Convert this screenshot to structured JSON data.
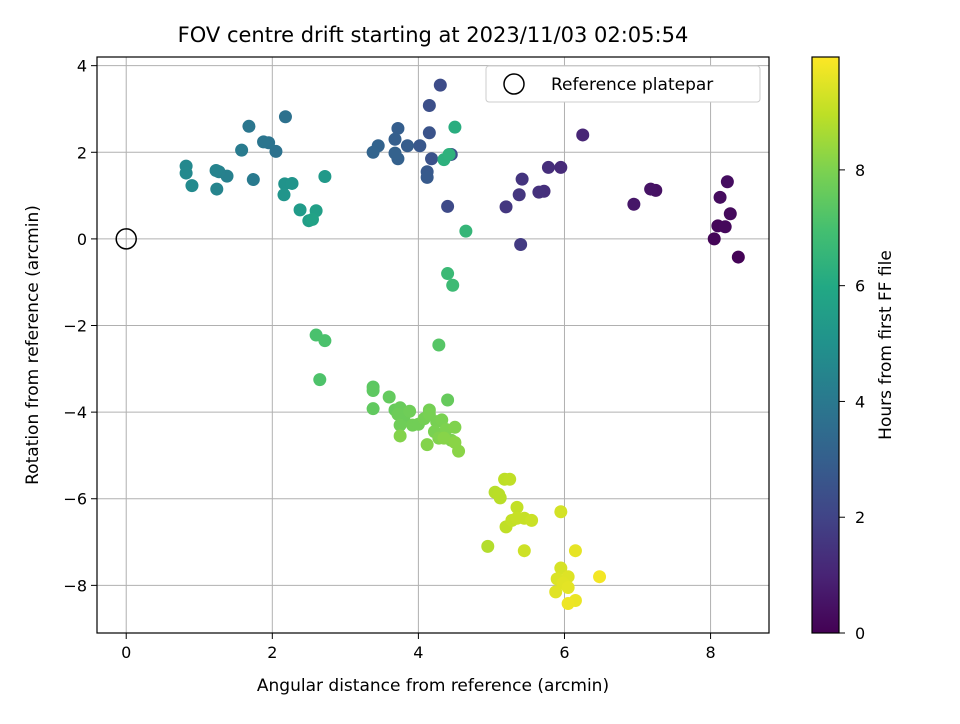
{
  "chart_data": {
    "type": "scatter",
    "title": "FOV centre drift starting at 2023/11/03 02:05:54",
    "xlabel": "Angular distance from reference (arcmin)",
    "ylabel": "Rotation from reference (arcmin)",
    "xlim": [
      -0.4,
      8.8
    ],
    "ylim": [
      -9.1,
      4.2
    ],
    "xticks": [
      0,
      2,
      4,
      6,
      8
    ],
    "xtick_labels": [
      "0",
      "2",
      "4",
      "6",
      "8"
    ],
    "yticks": [
      -8,
      -6,
      -4,
      -2,
      0,
      2,
      4
    ],
    "ytick_labels": [
      "−8",
      "−6",
      "−4",
      "−2",
      "0",
      "2",
      "4"
    ],
    "grid": true,
    "legend": {
      "position": "top-right",
      "entries": [
        {
          "label": "Reference platepar",
          "marker": "open-circle"
        }
      ]
    },
    "reference_point": {
      "x": 0,
      "y": 0
    },
    "colorbar": {
      "label": "Hours from first FF file",
      "colormap": "viridis",
      "range": [
        0,
        9.95
      ],
      "ticks": [
        0,
        2,
        4,
        6,
        8
      ],
      "tick_labels": [
        "0",
        "2",
        "4",
        "6",
        "8"
      ]
    },
    "points": [
      [
        8.38,
        -0.42,
        0.05
      ],
      [
        8.05,
        0.0,
        0.1
      ],
      [
        8.1,
        0.3,
        0.15
      ],
      [
        8.2,
        0.28,
        0.2
      ],
      [
        8.27,
        0.58,
        0.25
      ],
      [
        8.13,
        0.96,
        0.3
      ],
      [
        8.23,
        1.32,
        0.35
      ],
      [
        7.25,
        1.12,
        0.45
      ],
      [
        7.18,
        1.15,
        0.5
      ],
      [
        6.95,
        0.8,
        0.6
      ],
      [
        6.25,
        2.4,
        1.05
      ],
      [
        5.95,
        1.65,
        1.2
      ],
      [
        5.78,
        1.65,
        1.3
      ],
      [
        5.72,
        1.1,
        1.35
      ],
      [
        5.65,
        1.08,
        1.4
      ],
      [
        5.42,
        1.38,
        1.5
      ],
      [
        5.38,
        1.02,
        1.55
      ],
      [
        5.2,
        0.74,
        1.6
      ],
      [
        5.4,
        -0.13,
        1.7
      ],
      [
        4.4,
        0.75,
        2.2
      ],
      [
        4.3,
        3.55,
        2.3
      ],
      [
        4.15,
        3.08,
        2.4
      ],
      [
        4.45,
        1.95,
        2.45
      ],
      [
        4.18,
        1.85,
        2.5
      ],
      [
        4.15,
        2.45,
        2.55
      ],
      [
        4.02,
        2.15,
        2.7
      ],
      [
        4.12,
        1.55,
        2.75
      ],
      [
        4.12,
        1.42,
        2.8
      ],
      [
        3.85,
        2.15,
        2.9
      ],
      [
        3.72,
        2.55,
        2.95
      ],
      [
        3.68,
        2.3,
        3.0
      ],
      [
        3.72,
        1.85,
        3.05
      ],
      [
        3.68,
        1.98,
        3.1
      ],
      [
        3.45,
        2.15,
        3.15
      ],
      [
        3.38,
        2.0,
        3.2
      ],
      [
        2.18,
        2.82,
        3.7
      ],
      [
        2.05,
        2.02,
        3.75
      ],
      [
        1.95,
        2.22,
        3.8
      ],
      [
        1.88,
        2.24,
        3.85
      ],
      [
        1.68,
        2.6,
        3.9
      ],
      [
        1.74,
        1.37,
        4.05
      ],
      [
        1.58,
        2.05,
        4.1
      ],
      [
        1.38,
        1.45,
        4.3
      ],
      [
        1.27,
        1.55,
        4.35
      ],
      [
        1.23,
        1.58,
        4.4
      ],
      [
        1.24,
        1.15,
        4.45
      ],
      [
        0.82,
        1.68,
        4.6
      ],
      [
        0.82,
        1.52,
        4.65
      ],
      [
        0.9,
        1.23,
        4.7
      ],
      [
        2.17,
        1.27,
        5.05
      ],
      [
        2.27,
        1.28,
        5.1
      ],
      [
        2.16,
        1.02,
        5.15
      ],
      [
        2.72,
        1.44,
        5.3
      ],
      [
        2.38,
        0.67,
        5.4
      ],
      [
        2.5,
        0.42,
        5.55
      ],
      [
        2.6,
        0.65,
        5.6
      ],
      [
        2.55,
        0.45,
        5.7
      ],
      [
        4.5,
        2.58,
        6.2
      ],
      [
        4.35,
        1.83,
        6.3
      ],
      [
        4.42,
        1.95,
        6.35
      ],
      [
        4.65,
        0.18,
        6.55
      ],
      [
        4.4,
        -0.8,
        6.7
      ],
      [
        4.47,
        -1.07,
        6.75
      ],
      [
        2.6,
        -2.22,
        7.05
      ],
      [
        2.72,
        -2.35,
        7.1
      ],
      [
        2.65,
        -3.25,
        7.15
      ],
      [
        4.28,
        -2.45,
        7.3
      ],
      [
        3.38,
        -3.42,
        7.4
      ],
      [
        3.38,
        -3.5,
        7.45
      ],
      [
        3.38,
        -3.92,
        7.5
      ],
      [
        3.6,
        -3.65,
        7.55
      ],
      [
        4.4,
        -3.72,
        7.6
      ],
      [
        3.68,
        -3.95,
        7.6
      ],
      [
        3.75,
        -3.9,
        7.65
      ],
      [
        3.72,
        -4.05,
        7.7
      ],
      [
        3.8,
        -4.15,
        7.7
      ],
      [
        3.88,
        -3.98,
        7.75
      ],
      [
        3.75,
        -4.3,
        7.75
      ],
      [
        3.92,
        -4.3,
        7.8
      ],
      [
        4.0,
        -4.28,
        7.8
      ],
      [
        4.08,
        -4.15,
        7.85
      ],
      [
        4.15,
        -3.95,
        7.85
      ],
      [
        4.15,
        -4.05,
        7.9
      ],
      [
        4.25,
        -4.22,
        7.9
      ],
      [
        4.32,
        -4.18,
        7.95
      ],
      [
        4.22,
        -4.45,
        7.95
      ],
      [
        4.38,
        -4.4,
        8.0
      ],
      [
        4.45,
        -4.65,
        8.0
      ],
      [
        4.5,
        -4.35,
        8.05
      ],
      [
        4.28,
        -4.6,
        8.05
      ],
      [
        4.12,
        -4.75,
        8.1
      ],
      [
        3.75,
        -4.55,
        8.1
      ],
      [
        4.35,
        -4.6,
        8.15
      ],
      [
        4.55,
        -4.9,
        8.2
      ],
      [
        4.5,
        -4.7,
        8.2
      ],
      [
        4.95,
        -7.1,
        8.8
      ],
      [
        5.05,
        -5.85,
        8.85
      ],
      [
        5.1,
        -5.9,
        8.9
      ],
      [
        5.12,
        -5.98,
        8.9
      ],
      [
        5.18,
        -5.55,
        8.95
      ],
      [
        5.25,
        -5.55,
        9.0
      ],
      [
        5.2,
        -6.65,
        9.0
      ],
      [
        5.28,
        -6.5,
        9.05
      ],
      [
        5.35,
        -6.2,
        9.05
      ],
      [
        5.35,
        -6.45,
        9.1
      ],
      [
        5.45,
        -6.45,
        9.1
      ],
      [
        5.55,
        -6.5,
        9.15
      ],
      [
        5.45,
        -7.2,
        9.2
      ],
      [
        5.95,
        -6.3,
        9.3
      ],
      [
        5.95,
        -7.6,
        9.35
      ],
      [
        5.9,
        -7.85,
        9.4
      ],
      [
        6.05,
        -7.8,
        9.45
      ],
      [
        5.98,
        -7.95,
        9.5
      ],
      [
        5.88,
        -8.15,
        9.5
      ],
      [
        6.05,
        -8.05,
        9.55
      ],
      [
        6.15,
        -7.2,
        9.6
      ],
      [
        6.15,
        -8.35,
        9.65
      ],
      [
        6.05,
        -8.42,
        9.7
      ],
      [
        6.48,
        -7.8,
        9.8
      ]
    ]
  },
  "colors": {
    "axes": "#000000",
    "grid": "#b0b0b0",
    "background": "#ffffff"
  }
}
